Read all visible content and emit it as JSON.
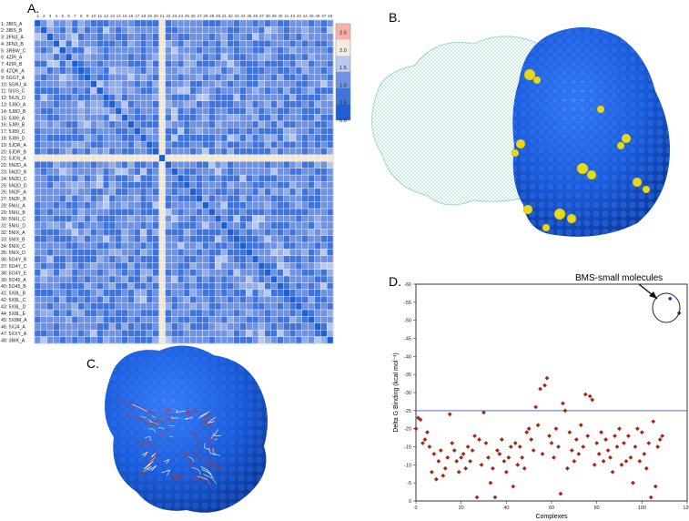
{
  "panels": {
    "a": "A.",
    "b": "B.",
    "c": "C.",
    "d": "D."
  },
  "colors": {
    "heat_low": "#1f5fd6",
    "heat_mid": "#6f93e2",
    "heat_high": "#b9c8ef",
    "heat_top": "#f6b1a9",
    "heat_stripe": "#f3e8d4",
    "protein_blue": "#1b5ede",
    "protein_yellow": "#e6d81d",
    "mesh_green": "#8fd6c5",
    "point_red": "#a52a12",
    "threshold_line": "#5a6fbf"
  },
  "chart_data": [
    {
      "type": "heatmap",
      "panel": "A.",
      "column_labels": [
        "1",
        "2",
        "3",
        "4",
        "5",
        "6",
        "7",
        "8",
        "9",
        "10",
        "11",
        "12",
        "13",
        "14",
        "15",
        "16",
        "17",
        "18",
        "19",
        "20",
        "21",
        "22",
        "23",
        "24",
        "25",
        "26",
        "27",
        "28",
        "29",
        "30",
        "31",
        "32",
        "33",
        "34",
        "35",
        "36",
        "37",
        "38",
        "39",
        "40",
        "41",
        "42",
        "43",
        "44",
        "45",
        "46",
        "47",
        "48"
      ],
      "row_labels": [
        "1:  3BIS_A",
        "2:  3BIS_B",
        "3:  3FN3_A",
        "4:  3FN3_B",
        "5:  3RBW_C",
        "6:  4ZIR_A",
        "7:  4ZIR_B",
        "8:  4ZQK_A",
        "9:  5GGT_A",
        "10: 5GRJ_A",
        "11: 5IUS_C",
        "12: 5IUS_D",
        "13: 5J8O_A",
        "14: 5J8O_B",
        "15: 5J89_A",
        "16: 5J89_B",
        "17: 5J89_C",
        "18: 5J89_D",
        "19: 5JDR_A",
        "20: 5JDR_B",
        "21: 5JDS_A",
        "22: 5N2D_A",
        "23: 5N2D_B",
        "24: 5N2D_C",
        "25: 5N2D_D",
        "26: 5N2F_A",
        "27: 5N2F_B",
        "28: 5NIU_A",
        "29: 5NIU_B",
        "30: 5NIU_C",
        "31: 5NIU_D",
        "32: 5NIX_A",
        "33: 5NIX_B",
        "34: 5NIX_C",
        "35: 5NIX_D",
        "36: 5O4Y_B",
        "37: 5O4Y_C",
        "38: 5O4Y_E",
        "39: 5O45_A",
        "40: 5O45_B",
        "41: 5X8L_B",
        "42: 5X8L_C",
        "43: 5X8L_D",
        "44: 5X8L_E",
        "45: 5X8M_A",
        "46: 5XJ4_A",
        "47: 5XXY_A",
        "48: 3BIK_A"
      ],
      "stripe_index": 20,
      "colorbar_ticks": [
        "2.5",
        "2.0",
        "1.5",
        "1.0",
        "0.5",
        "0.0"
      ],
      "colorbar_range": [
        0,
        2.75
      ]
    },
    {
      "type": "scatter",
      "panel": "D.",
      "title": "",
      "xlabel": "Complexes",
      "ylabel": "Delta G Binding (kcal mol⁻¹)",
      "xlim": [
        0,
        120
      ],
      "ylim": [
        0,
        -60
      ],
      "x_ticks": [
        "0",
        "20",
        "40",
        "60",
        "80",
        "100",
        "120"
      ],
      "y_ticks": [
        "0",
        "-5",
        "-10",
        "-15",
        "-20",
        "-25",
        "-30",
        "-35",
        "-40",
        "-45",
        "-50",
        "-55",
        "-60"
      ],
      "threshold": -25,
      "annotation": "BMS-small molecules",
      "series": [
        {
          "points": [
            [
              0,
              -20
            ],
            [
              1,
              -23
            ],
            [
              2,
              -22.5
            ],
            [
              3,
              -16
            ],
            [
              4,
              -17
            ],
            [
              5,
              -19
            ],
            [
              6,
              -15
            ],
            [
              7,
              -8
            ],
            [
              8,
              -13
            ],
            [
              9,
              -6
            ],
            [
              10,
              -11
            ],
            [
              11,
              -14
            ],
            [
              12,
              -7
            ],
            [
              13,
              -9
            ],
            [
              14,
              -12
            ],
            [
              15,
              -24
            ],
            [
              16,
              -16
            ],
            [
              17,
              -14
            ],
            [
              18,
              -11
            ],
            [
              19,
              -8
            ],
            [
              20,
              -12
            ],
            [
              21,
              -13
            ],
            [
              22,
              -9
            ],
            [
              23,
              -15
            ],
            [
              24,
              -11
            ],
            [
              25,
              -14
            ],
            [
              26,
              -18
            ],
            [
              27,
              -1
            ],
            [
              28,
              -17
            ],
            [
              29,
              -10
            ],
            [
              30,
              -24.5
            ],
            [
              31,
              -16
            ],
            [
              32,
              -12
            ],
            [
              33,
              -5
            ],
            [
              34,
              -9
            ],
            [
              35,
              -1
            ],
            [
              36,
              -14
            ],
            [
              37,
              -13
            ],
            [
              38,
              -17
            ],
            [
              39,
              -11
            ],
            [
              40,
              -8
            ],
            [
              41,
              -12
            ],
            [
              42,
              -15
            ],
            [
              43,
              -4
            ],
            [
              44,
              -16
            ],
            [
              45,
              -10
            ],
            [
              46,
              -15
            ],
            [
              47,
              -12
            ],
            [
              48,
              -9
            ],
            [
              49,
              -19
            ],
            [
              50,
              -20
            ],
            [
              51,
              -17
            ],
            [
              52,
              -14
            ],
            [
              53,
              -26
            ],
            [
              54,
              -21
            ],
            [
              55,
              -31
            ],
            [
              56,
              -13
            ],
            [
              57,
              -32
            ],
            [
              58,
              -34
            ],
            [
              59,
              -18
            ],
            [
              60,
              -16
            ],
            [
              61,
              -12
            ],
            [
              62,
              -20
            ],
            [
              63,
              -15
            ],
            [
              64,
              -2
            ],
            [
              65,
              -27
            ],
            [
              66,
              -25
            ],
            [
              67,
              -9
            ],
            [
              68,
              -19
            ],
            [
              69,
              -14
            ],
            [
              70,
              -11
            ],
            [
              71,
              -17
            ],
            [
              72,
              -13
            ],
            [
              73,
              -21
            ],
            [
              74,
              -15
            ],
            [
              75,
              -29.5
            ],
            [
              76,
              -18
            ],
            [
              77,
              -29
            ],
            [
              78,
              -28
            ],
            [
              79,
              -10
            ],
            [
              80,
              -16
            ],
            [
              81,
              -13
            ],
            [
              82,
              -19
            ],
            [
              83,
              -11
            ],
            [
              84,
              -17
            ],
            [
              85,
              -14
            ],
            [
              86,
              -12
            ],
            [
              87,
              -8
            ],
            [
              88,
              -18
            ],
            [
              89,
              -15
            ],
            [
              90,
              -20
            ],
            [
              91,
              -10
            ],
            [
              92,
              -16
            ],
            [
              93,
              -11
            ],
            [
              94,
              -18
            ],
            [
              95,
              -12
            ],
            [
              96,
              -5
            ],
            [
              97,
              -15
            ],
            [
              98,
              -20
            ],
            [
              99,
              -11
            ],
            [
              100,
              -19
            ],
            [
              101,
              -13
            ],
            [
              102,
              -9
            ],
            [
              103,
              -16
            ],
            [
              104,
              -1
            ],
            [
              105,
              -22
            ],
            [
              106,
              -4
            ],
            [
              107,
              -15
            ],
            [
              108,
              -17
            ],
            [
              109,
              -18
            ]
          ]
        },
        {
          "points": [
            [
              106,
              -56
            ],
            [
              110,
              -52
            ]
          ]
        }
      ]
    }
  ]
}
